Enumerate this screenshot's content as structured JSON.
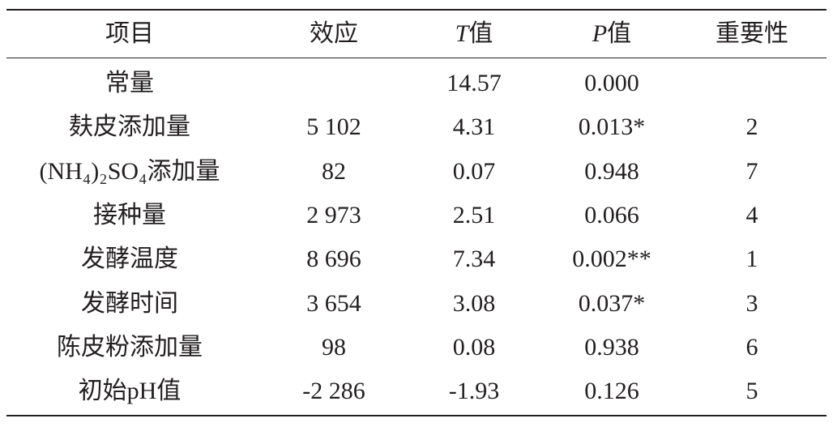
{
  "table": {
    "header": {
      "item": "项目",
      "effect": "效应",
      "t": "T值",
      "p": "P值",
      "rank": "重要性"
    },
    "rows": [
      {
        "item": "常量",
        "t": "14.57",
        "p": "0.000"
      },
      {
        "item": "麸皮添加量",
        "effect": "5 102",
        "t": "4.31",
        "p": "0.013*",
        "rank": "2"
      },
      {
        "item": "(NH₄)₂SO₄添加量",
        "effect": "82",
        "t": "0.07",
        "p": "0.948",
        "rank": "7"
      },
      {
        "item": "接种量",
        "effect": "2 973",
        "t": "2.51",
        "p": "0.066",
        "rank": "4"
      },
      {
        "item": "发酵温度",
        "effect": "8 696",
        "t": "7.34",
        "p": "0.002**",
        "rank": "1"
      },
      {
        "item": "发酵时间",
        "effect": "3 654",
        "t": "3.08",
        "p": "0.037*",
        "rank": "3"
      },
      {
        "item": "陈皮粉添加量",
        "effect": "98",
        "t": "0.08",
        "p": "0.938",
        "rank": "6"
      },
      {
        "item": "初始pH值",
        "effect": "-2 286",
        "t": "-1.93",
        "p": "0.126",
        "rank": "5"
      }
    ]
  }
}
